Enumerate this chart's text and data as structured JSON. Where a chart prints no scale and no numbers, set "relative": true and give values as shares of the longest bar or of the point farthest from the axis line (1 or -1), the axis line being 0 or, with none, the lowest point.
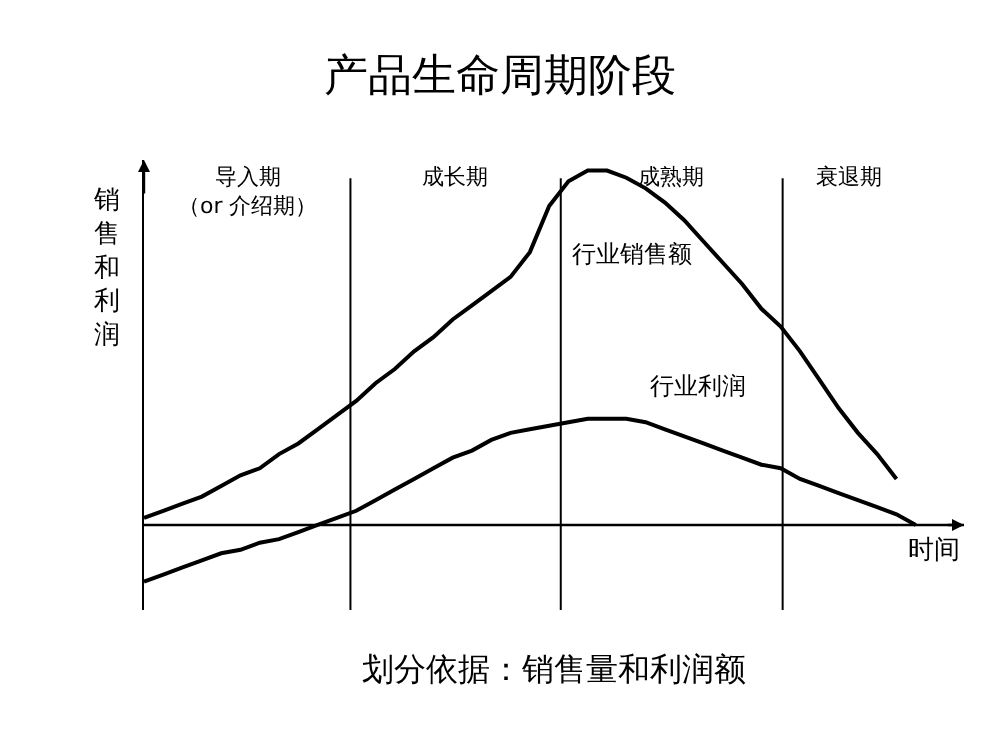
{
  "chart_data": {
    "type": "line",
    "title": "产品生命周期阶段",
    "ylabel": "销售和利润",
    "xlabel": "时间",
    "relative": true,
    "legend": false,
    "marker": "none",
    "line_style": "solid",
    "categories": [
      null,
      null,
      null,
      null,
      null,
      null,
      null,
      null,
      null,
      null,
      null,
      null,
      null,
      null,
      null,
      null,
      null,
      null,
      null,
      null,
      null,
      null,
      null,
      null,
      null,
      null,
      null,
      null,
      null,
      null,
      null,
      null,
      null,
      null,
      null,
      null,
      null,
      null,
      null,
      null,
      null
    ],
    "series": [
      {
        "name": "行业销售额",
        "color": "#000000",
        "values": [
          0.02,
          0.04,
          0.06,
          0.08,
          0.11,
          0.14,
          0.16,
          0.2,
          0.23,
          0.27,
          0.31,
          0.35,
          0.4,
          0.44,
          0.49,
          0.53,
          0.58,
          0.62,
          0.66,
          0.7,
          0.77,
          0.9,
          0.97,
          1,
          1,
          0.98,
          0.95,
          0.91,
          0.86,
          0.8,
          0.74,
          0.68,
          0.61,
          0.56,
          0.49,
          0.41,
          0.33,
          0.26,
          0.2,
          0.13,
          null
        ]
      },
      {
        "name": "行业利润",
        "color": "#000000",
        "values": [
          -0.16,
          -0.14,
          -0.12,
          -0.1,
          -0.08,
          -0.07,
          -0.05,
          -0.04,
          -0.02,
          0,
          0.02,
          0.04,
          0.07,
          0.1,
          0.13,
          0.16,
          0.19,
          0.21,
          0.24,
          0.26,
          0.27,
          0.28,
          0.29,
          0.3,
          0.3,
          0.3,
          0.29,
          0.27,
          0.25,
          0.23,
          0.21,
          0.19,
          0.17,
          0.16,
          0.13,
          0.11,
          0.09,
          0.07,
          0.05,
          0.03,
          0
        ]
      }
    ],
    "annotations": [
      "导入期（or 介绍期）",
      "成长期",
      "成熟期",
      "衰退期",
      "划分依据：销售量和利润额"
    ]
  }
}
